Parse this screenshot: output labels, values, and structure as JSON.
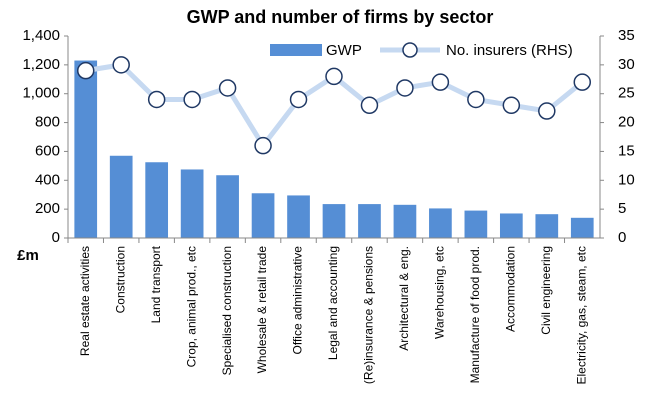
{
  "chart_data": {
    "type": "bar",
    "title": "GWP and number of firms by sector",
    "ylabel": "£m",
    "categories": [
      "Real estate activities",
      "Construction",
      "Land transport",
      "Crop, animal prod., etc",
      "Specialised construction",
      "Wholesale & retail trade",
      "Office administrative",
      "Legal and accounting",
      "(Re)insurance & pensions",
      "Architectural & eng.",
      "Warehousing, etc",
      "Manufacture of food prod.",
      "Accommodation",
      "Civil engineering",
      "Electricity, gas, steam, etc"
    ],
    "series": [
      {
        "name": "GWP",
        "type": "bar",
        "color": "#558ed5",
        "values": [
          1230,
          570,
          525,
          475,
          435,
          310,
          295,
          235,
          235,
          230,
          205,
          190,
          170,
          165,
          140
        ]
      },
      {
        "name": "No. insurers (RHS)",
        "type": "line",
        "axis": "y2",
        "color": "#c6d9f1",
        "marker_color": "#1f3864",
        "values": [
          29,
          30,
          24,
          24,
          26,
          16,
          24,
          28,
          23,
          26,
          27,
          24,
          23,
          22,
          27
        ]
      }
    ],
    "ylim": [
      0,
      1400
    ],
    "yticks": [
      0,
      200,
      400,
      600,
      800,
      {
        "value": 1000,
        "label": "1,000"
      },
      {
        "value": 1200,
        "label": "1,200"
      },
      {
        "value": 1400,
        "label": "1,400"
      }
    ],
    "y2lim": [
      0,
      35
    ],
    "y2ticks": [
      0,
      5,
      10,
      15,
      20,
      25,
      30,
      35
    ],
    "grid": false
  }
}
